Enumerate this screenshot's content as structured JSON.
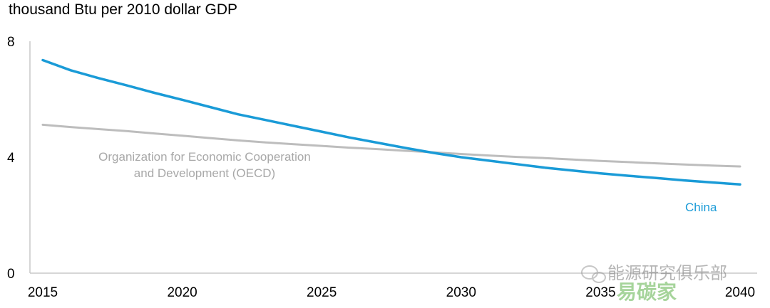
{
  "chart_data": {
    "type": "line",
    "ylabel": "thousand Btu per 2010 dollar GDP",
    "x": [
      2015,
      2016,
      2017,
      2018,
      2019,
      2020,
      2021,
      2022,
      2023,
      2024,
      2025,
      2026,
      2027,
      2028,
      2029,
      2030,
      2031,
      2032,
      2033,
      2034,
      2035,
      2036,
      2037,
      2038,
      2039,
      2040
    ],
    "xlim": [
      2015,
      2040
    ],
    "ylim": [
      0,
      8
    ],
    "x_ticks": [
      "2015",
      "2020",
      "2025",
      "2030",
      "2035",
      "2040"
    ],
    "y_ticks": [
      "0",
      "4",
      "8"
    ],
    "grid": false,
    "series": [
      {
        "name": "China",
        "label_lines": [
          "China"
        ],
        "color": "#1a9bd7",
        "values": [
          7.35,
          7.0,
          6.73,
          6.48,
          6.22,
          5.98,
          5.73,
          5.48,
          5.28,
          5.08,
          4.88,
          4.68,
          4.5,
          4.32,
          4.15,
          4.0,
          3.88,
          3.76,
          3.64,
          3.54,
          3.44,
          3.36,
          3.28,
          3.2,
          3.13,
          3.06
        ]
      },
      {
        "name": "Organization for Economic Cooperation and Development (OECD)",
        "label_lines": [
          "Organization for Economic Cooperation",
          "and Development (OECD)"
        ],
        "color": "#bdbdbd",
        "values": [
          5.12,
          5.04,
          4.97,
          4.9,
          4.82,
          4.74,
          4.66,
          4.58,
          4.51,
          4.45,
          4.39,
          4.33,
          4.28,
          4.22,
          4.17,
          4.11,
          4.06,
          4.01,
          3.97,
          3.92,
          3.87,
          3.83,
          3.79,
          3.75,
          3.71,
          3.68
        ]
      }
    ]
  },
  "watermark": {
    "line1": "能源研究俱乐部",
    "line2": "易碳家",
    "icon": "wechat-icon"
  }
}
